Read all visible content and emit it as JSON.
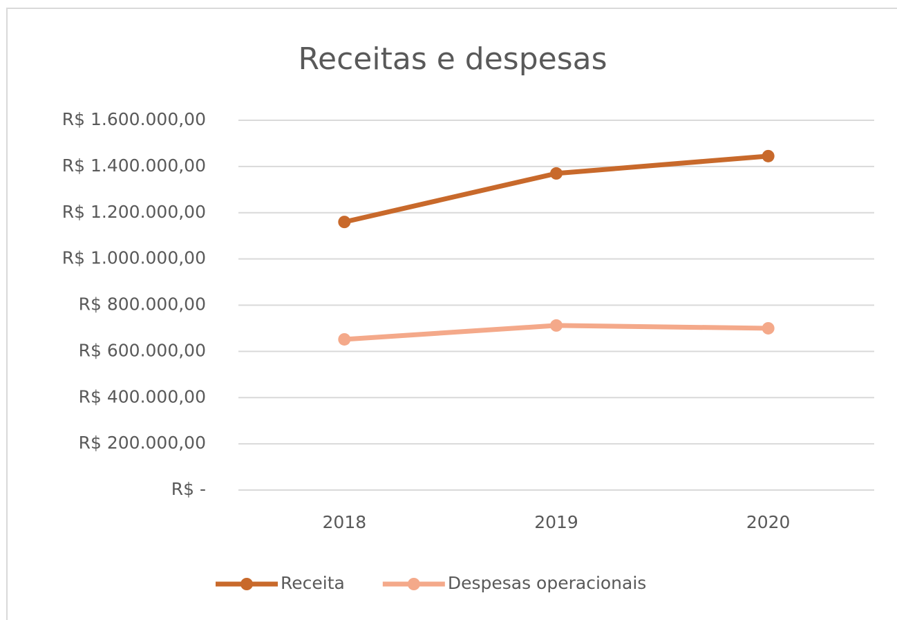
{
  "chart_data": {
    "type": "line",
    "title": "Receitas e despesas",
    "categories": [
      "2018",
      "2019",
      "2020"
    ],
    "series": [
      {
        "name": "Receita",
        "color": "#c8692b",
        "values": [
          1160000,
          1370000,
          1445000
        ]
      },
      {
        "name": "Despesas operacionais",
        "color": "#f4a98a",
        "values": [
          652000,
          712000,
          700000
        ]
      }
    ],
    "ylim": [
      0,
      1600000
    ],
    "yticks": [
      {
        "value": 0,
        "label": "R$ -"
      },
      {
        "value": 200000,
        "label": "R$ 200.000,00"
      },
      {
        "value": 400000,
        "label": "R$ 400.000,00"
      },
      {
        "value": 600000,
        "label": "R$ 600.000,00"
      },
      {
        "value": 800000,
        "label": "R$ 800.000,00"
      },
      {
        "value": 1000000,
        "label": "R$ 1.000.000,00"
      },
      {
        "value": 1200000,
        "label": "R$ 1.200.000,00"
      },
      {
        "value": 1400000,
        "label": "R$ 1.400.000,00"
      },
      {
        "value": 1600000,
        "label": "R$ 1.600.000,00"
      }
    ],
    "grid": true,
    "legend": "bottom"
  }
}
